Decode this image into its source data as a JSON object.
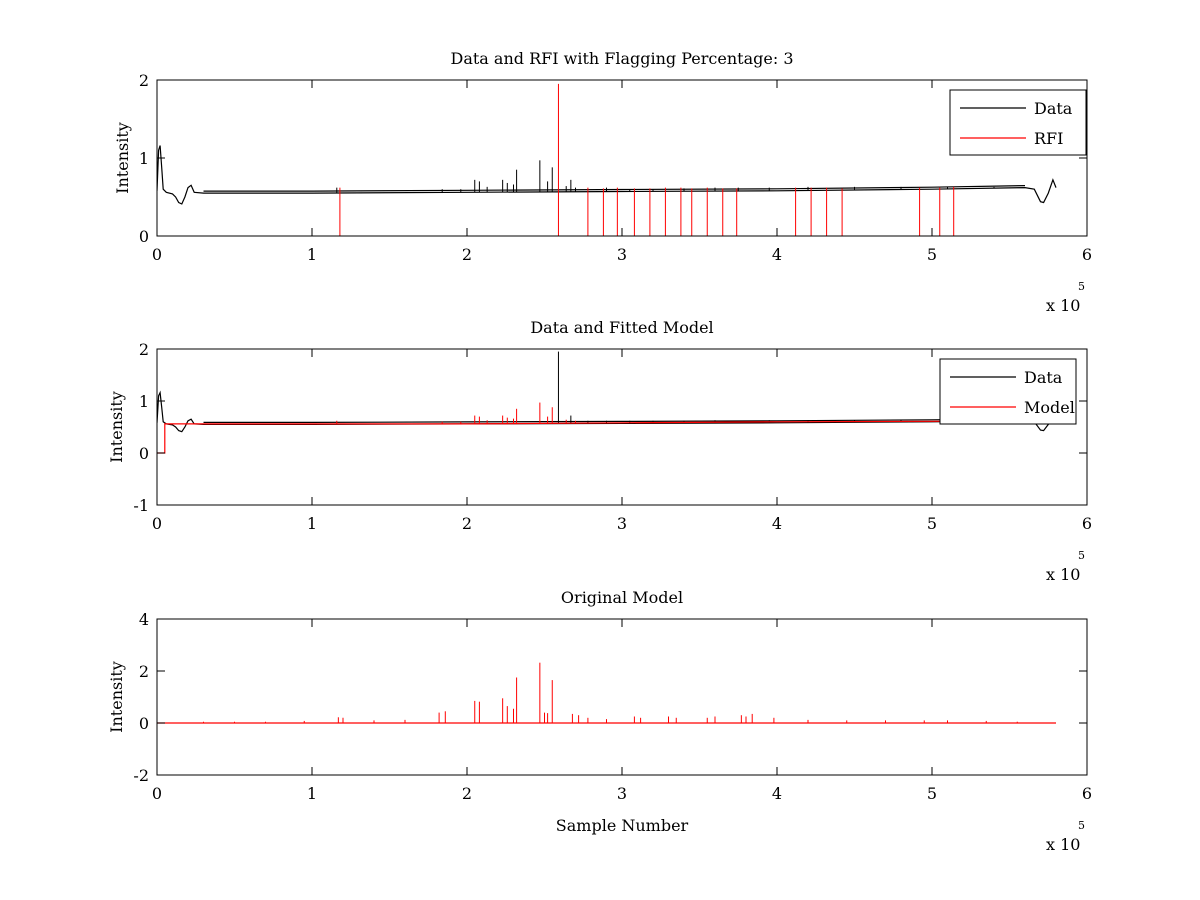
{
  "chart_data": [
    {
      "type": "line",
      "title": "Data and RFI with Flagging Percentage: 3",
      "xlabel": "",
      "ylabel": "Intensity",
      "xlim": [
        0,
        6
      ],
      "ylim": [
        0,
        2
      ],
      "x_multiplier": "x 10",
      "x_exponent": "5",
      "xticks": [
        "0",
        "1",
        "2",
        "3",
        "4",
        "5",
        "6"
      ],
      "yticks": [
        "0",
        "1",
        "2"
      ],
      "grid": false,
      "legend_position": "top-right",
      "series": [
        {
          "name": "Data",
          "color": "#000000",
          "baseline": [
            [
              0.0,
              0.58
            ],
            [
              0.01,
              1.1
            ],
            [
              0.02,
              1.16
            ],
            [
              0.03,
              0.88
            ],
            [
              0.04,
              0.6
            ],
            [
              0.06,
              0.56
            ],
            [
              0.1,
              0.54
            ],
            [
              0.12,
              0.5
            ],
            [
              0.14,
              0.43
            ],
            [
              0.16,
              0.41
            ],
            [
              0.18,
              0.5
            ],
            [
              0.2,
              0.62
            ],
            [
              0.22,
              0.65
            ],
            [
              0.24,
              0.56
            ],
            [
              0.3,
              0.55
            ],
            [
              1.0,
              0.55
            ],
            [
              2.0,
              0.56
            ],
            [
              3.0,
              0.57
            ],
            [
              4.0,
              0.58
            ],
            [
              5.0,
              0.6
            ],
            [
              5.6,
              0.62
            ],
            [
              5.66,
              0.6
            ],
            [
              5.7,
              0.44
            ],
            [
              5.72,
              0.43
            ],
            [
              5.75,
              0.55
            ],
            [
              5.78,
              0.72
            ],
            [
              5.8,
              0.62
            ]
          ],
          "spikes": [
            [
              1.16,
              0.62
            ],
            [
              1.84,
              0.6
            ],
            [
              1.96,
              0.6
            ],
            [
              2.05,
              0.72
            ],
            [
              2.08,
              0.7
            ],
            [
              2.13,
              0.63
            ],
            [
              2.23,
              0.72
            ],
            [
              2.26,
              0.68
            ],
            [
              2.3,
              0.66
            ],
            [
              2.32,
              0.85
            ],
            [
              2.47,
              0.97
            ],
            [
              2.52,
              0.7
            ],
            [
              2.55,
              0.88
            ],
            [
              2.64,
              0.64
            ],
            [
              2.67,
              0.72
            ],
            [
              2.7,
              0.62
            ],
            [
              2.9,
              0.62
            ],
            [
              3.05,
              0.6
            ],
            [
              3.2,
              0.6
            ],
            [
              3.4,
              0.61
            ],
            [
              3.6,
              0.62
            ],
            [
              3.75,
              0.62
            ],
            [
              3.95,
              0.62
            ],
            [
              4.2,
              0.63
            ],
            [
              4.5,
              0.63
            ],
            [
              4.8,
              0.63
            ],
            [
              5.1,
              0.63
            ],
            [
              5.4,
              0.63
            ]
          ]
        },
        {
          "name": "RFI",
          "color": "#ff0000",
          "spikes": [
            [
              1.18,
              0.62
            ],
            [
              2.59,
              1.95
            ],
            [
              2.78,
              0.62
            ],
            [
              2.88,
              0.61
            ],
            [
              2.97,
              0.62
            ],
            [
              3.08,
              0.61
            ],
            [
              3.18,
              0.61
            ],
            [
              3.28,
              0.62
            ],
            [
              3.38,
              0.62
            ],
            [
              3.45,
              0.61
            ],
            [
              3.55,
              0.62
            ],
            [
              3.65,
              0.61
            ],
            [
              3.74,
              0.61
            ],
            [
              4.12,
              0.62
            ],
            [
              4.22,
              0.62
            ],
            [
              4.32,
              0.62
            ],
            [
              4.42,
              0.61
            ],
            [
              4.92,
              0.62
            ],
            [
              5.05,
              0.62
            ],
            [
              5.14,
              0.63
            ]
          ]
        }
      ]
    },
    {
      "type": "line",
      "title": "Data and Fitted Model",
      "xlabel": "",
      "ylabel": "Intensity",
      "xlim": [
        0,
        6
      ],
      "ylim": [
        -1,
        2
      ],
      "x_multiplier": "x 10",
      "x_exponent": "5",
      "xticks": [
        "0",
        "1",
        "2",
        "3",
        "4",
        "5",
        "6"
      ],
      "yticks": [
        "-1",
        "0",
        "1",
        "2"
      ],
      "grid": false,
      "legend_position": "top-right",
      "series": [
        {
          "name": "Data",
          "color": "#000000",
          "baseline": [
            [
              0.0,
              0.58
            ],
            [
              0.01,
              1.1
            ],
            [
              0.02,
              1.16
            ],
            [
              0.03,
              0.88
            ],
            [
              0.04,
              0.6
            ],
            [
              0.06,
              0.56
            ],
            [
              0.1,
              0.54
            ],
            [
              0.12,
              0.5
            ],
            [
              0.14,
              0.43
            ],
            [
              0.16,
              0.41
            ],
            [
              0.18,
              0.5
            ],
            [
              0.2,
              0.62
            ],
            [
              0.22,
              0.65
            ],
            [
              0.24,
              0.56
            ],
            [
              0.3,
              0.55
            ],
            [
              1.0,
              0.55
            ],
            [
              2.0,
              0.56
            ],
            [
              3.0,
              0.57
            ],
            [
              4.0,
              0.58
            ],
            [
              5.0,
              0.6
            ],
            [
              5.6,
              0.62
            ],
            [
              5.66,
              0.6
            ],
            [
              5.7,
              0.44
            ],
            [
              5.72,
              0.43
            ],
            [
              5.75,
              0.55
            ],
            [
              5.78,
              0.72
            ],
            [
              5.8,
              0.62
            ]
          ],
          "spikes": [
            [
              2.59,
              1.95
            ],
            [
              2.67,
              0.72
            ],
            [
              2.78,
              0.62
            ],
            [
              2.9,
              0.62
            ],
            [
              3.05,
              0.62
            ],
            [
              3.2,
              0.62
            ],
            [
              3.4,
              0.62
            ],
            [
              3.6,
              0.63
            ],
            [
              3.75,
              0.62
            ],
            [
              3.95,
              0.63
            ],
            [
              4.2,
              0.63
            ],
            [
              4.5,
              0.63
            ],
            [
              4.8,
              0.63
            ],
            [
              5.1,
              0.63
            ]
          ]
        },
        {
          "name": "Model",
          "color": "#ff0000",
          "baseline": [
            [
              0.0,
              0.0
            ],
            [
              0.05,
              0.0
            ],
            [
              0.05,
              0.56
            ],
            [
              0.3,
              0.56
            ],
            [
              1.0,
              0.56
            ],
            [
              2.0,
              0.56
            ],
            [
              3.0,
              0.58
            ],
            [
              4.0,
              0.6
            ],
            [
              5.0,
              0.61
            ],
            [
              5.8,
              0.63
            ]
          ],
          "spikes": [
            [
              1.16,
              0.62
            ],
            [
              1.84,
              0.6
            ],
            [
              1.96,
              0.6
            ],
            [
              2.05,
              0.72
            ],
            [
              2.08,
              0.7
            ],
            [
              2.13,
              0.63
            ],
            [
              2.23,
              0.72
            ],
            [
              2.26,
              0.68
            ],
            [
              2.3,
              0.66
            ],
            [
              2.32,
              0.85
            ],
            [
              2.47,
              0.97
            ],
            [
              2.52,
              0.7
            ],
            [
              2.55,
              0.88
            ],
            [
              2.64,
              0.64
            ],
            [
              2.7,
              0.62
            ]
          ]
        }
      ]
    },
    {
      "type": "line",
      "title": "Original Model",
      "xlabel": "Sample Number",
      "ylabel": "Intensity",
      "xlim": [
        0,
        6
      ],
      "ylim": [
        -2,
        4
      ],
      "x_multiplier": "x 10",
      "x_exponent": "5",
      "xticks": [
        "0",
        "1",
        "2",
        "3",
        "4",
        "5",
        "6"
      ],
      "yticks": [
        "-2",
        "0",
        "2",
        "4"
      ],
      "grid": false,
      "series": [
        {
          "color": "#ff0000",
          "baseline": [
            [
              0.0,
              0.0
            ],
            [
              5.8,
              0.0
            ]
          ],
          "spikes": [
            [
              0.3,
              0.05
            ],
            [
              0.5,
              0.05
            ],
            [
              0.7,
              0.05
            ],
            [
              0.95,
              0.08
            ],
            [
              1.17,
              0.22
            ],
            [
              1.2,
              0.2
            ],
            [
              1.4,
              0.1
            ],
            [
              1.6,
              0.12
            ],
            [
              1.82,
              0.4
            ],
            [
              1.86,
              0.45
            ],
            [
              2.05,
              0.85
            ],
            [
              2.08,
              0.82
            ],
            [
              2.23,
              0.95
            ],
            [
              2.26,
              0.65
            ],
            [
              2.3,
              0.55
            ],
            [
              2.32,
              1.75
            ],
            [
              2.47,
              2.32
            ],
            [
              2.5,
              0.4
            ],
            [
              2.52,
              0.38
            ],
            [
              2.55,
              1.65
            ],
            [
              2.68,
              0.35
            ],
            [
              2.72,
              0.3
            ],
            [
              2.78,
              0.2
            ],
            [
              2.9,
              0.15
            ],
            [
              3.08,
              0.25
            ],
            [
              3.12,
              0.2
            ],
            [
              3.3,
              0.25
            ],
            [
              3.35,
              0.2
            ],
            [
              3.55,
              0.2
            ],
            [
              3.6,
              0.25
            ],
            [
              3.77,
              0.3
            ],
            [
              3.8,
              0.25
            ],
            [
              3.84,
              0.35
            ],
            [
              3.98,
              0.2
            ],
            [
              4.2,
              0.12
            ],
            [
              4.45,
              0.1
            ],
            [
              4.7,
              0.1
            ],
            [
              4.95,
              0.1
            ],
            [
              5.1,
              0.1
            ],
            [
              5.35,
              0.08
            ],
            [
              5.55,
              0.05
            ]
          ]
        }
      ]
    }
  ]
}
